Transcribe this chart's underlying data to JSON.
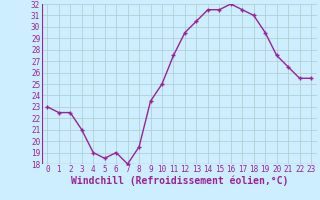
{
  "hours": [
    0,
    1,
    2,
    3,
    4,
    5,
    6,
    7,
    8,
    9,
    10,
    11,
    12,
    13,
    14,
    15,
    16,
    17,
    18,
    19,
    20,
    21,
    22,
    23
  ],
  "values": [
    23.0,
    22.5,
    22.5,
    21.0,
    19.0,
    18.5,
    19.0,
    18.0,
    19.5,
    23.5,
    25.0,
    27.5,
    29.5,
    30.5,
    31.5,
    31.5,
    32.0,
    31.5,
    31.0,
    29.5,
    27.5,
    26.5,
    25.5,
    25.5
  ],
  "line_color": "#992299",
  "marker": "+",
  "bg_color": "#cceeff",
  "grid_color": "#aacccc",
  "xlabel": "Windchill (Refroidissement éolien,°C)",
  "ylim": [
    18,
    32
  ],
  "yticks": [
    18,
    19,
    20,
    21,
    22,
    23,
    24,
    25,
    26,
    27,
    28,
    29,
    30,
    31,
    32
  ],
  "xticks": [
    0,
    1,
    2,
    3,
    4,
    5,
    6,
    7,
    8,
    9,
    10,
    11,
    12,
    13,
    14,
    15,
    16,
    17,
    18,
    19,
    20,
    21,
    22,
    23
  ],
  "xlabel_fontsize": 7,
  "tick_fontsize": 5.5,
  "marker_size": 3,
  "line_width": 1.0
}
